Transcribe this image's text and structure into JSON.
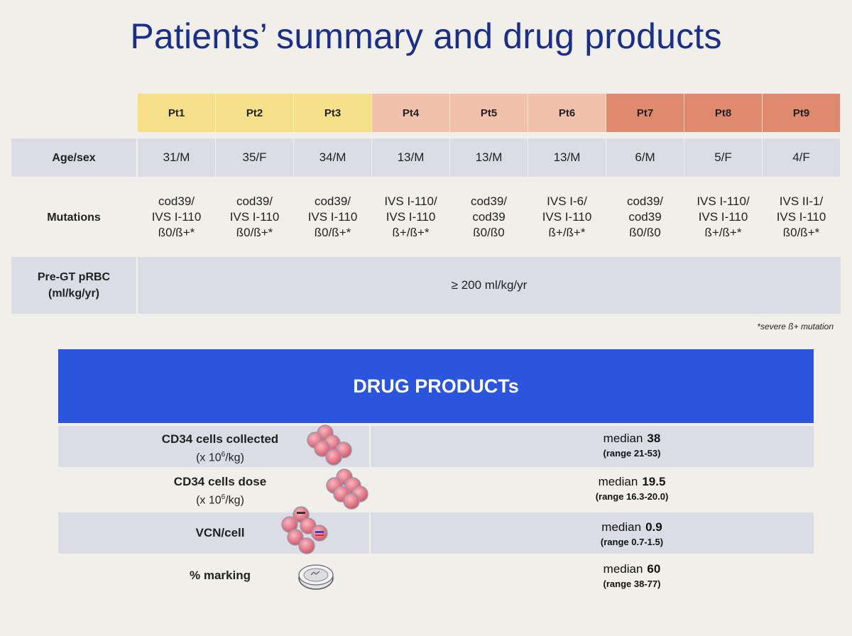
{
  "title": "Patients’ summary and drug products",
  "patients": [
    {
      "id": "Pt1",
      "age_sex": "31/M",
      "mutation": [
        "cod39/",
        "IVS I-110",
        "ß0/ß+*"
      ],
      "header_color": "#f5df88"
    },
    {
      "id": "Pt2",
      "age_sex": "35/F",
      "mutation": [
        "cod39/",
        "IVS I-110",
        "ß0/ß+*"
      ],
      "header_color": "#f5df88"
    },
    {
      "id": "Pt3",
      "age_sex": "34/M",
      "mutation": [
        "cod39/",
        "IVS I-110",
        "ß0/ß+*"
      ],
      "header_color": "#f5df88"
    },
    {
      "id": "Pt4",
      "age_sex": "13/M",
      "mutation": [
        "IVS I-110/",
        "IVS I-110",
        "ß+/ß+*"
      ],
      "header_color": "#f2c1ab"
    },
    {
      "id": "Pt5",
      "age_sex": "13/M",
      "mutation": [
        "cod39/",
        "cod39",
        "ß0/ß0"
      ],
      "header_color": "#f2c1ab"
    },
    {
      "id": "Pt6",
      "age_sex": "13/M",
      "mutation": [
        "IVS I-6/",
        "IVS I-110",
        "ß+/ß+*"
      ],
      "header_color": "#f2c1ab"
    },
    {
      "id": "Pt7",
      "age_sex": "6/M",
      "mutation": [
        "cod39/",
        "cod39",
        "ß0/ß0"
      ],
      "header_color": "#df8a6e"
    },
    {
      "id": "Pt8",
      "age_sex": "5/F",
      "mutation": [
        "IVS I-110/",
        "IVS I-110",
        "ß+/ß+*"
      ],
      "header_color": "#df8a6e"
    },
    {
      "id": "Pt9",
      "age_sex": "4/F",
      "mutation": [
        "IVS II-1/",
        "IVS I-110",
        "ß0/ß+*"
      ],
      "header_color": "#df8a6e"
    }
  ],
  "rows": {
    "age_label": "Age/sex",
    "mutations_label": "Mutations",
    "pregt_label_line1": "Pre-GT pRBC",
    "pregt_label_line2": "(ml/kg/yr)",
    "pregt_value": "≥ 200 ml/kg/yr"
  },
  "footnote": "*severe ß+ mutation",
  "drug_products": {
    "title": "DRUG PRODUCTs",
    "items": [
      {
        "label": "CD34 cells collected",
        "unit_pre": "(x 10",
        "unit_sup": "6",
        "unit_post": "/kg)",
        "median_word": "median",
        "median": "38",
        "range": "(range 21-53)",
        "icon": "cell-cluster-icon"
      },
      {
        "label": "CD34 cells dose",
        "unit_pre": "(x 10",
        "unit_sup": "6",
        "unit_post": "/kg)",
        "median_word": "median",
        "median": "19.5",
        "range": "(range 16.3-20.0)",
        "icon": "cell-cluster-icon"
      },
      {
        "label": "VCN/cell",
        "median_word": "median",
        "median": "0.9",
        "range": "(range 0.7-1.5)",
        "icon": "transduced-cells-icon"
      },
      {
        "label": "% marking",
        "median_word": "median",
        "median": "60",
        "range": "(range 38-77)",
        "icon": "petri-dish-icon"
      }
    ]
  }
}
